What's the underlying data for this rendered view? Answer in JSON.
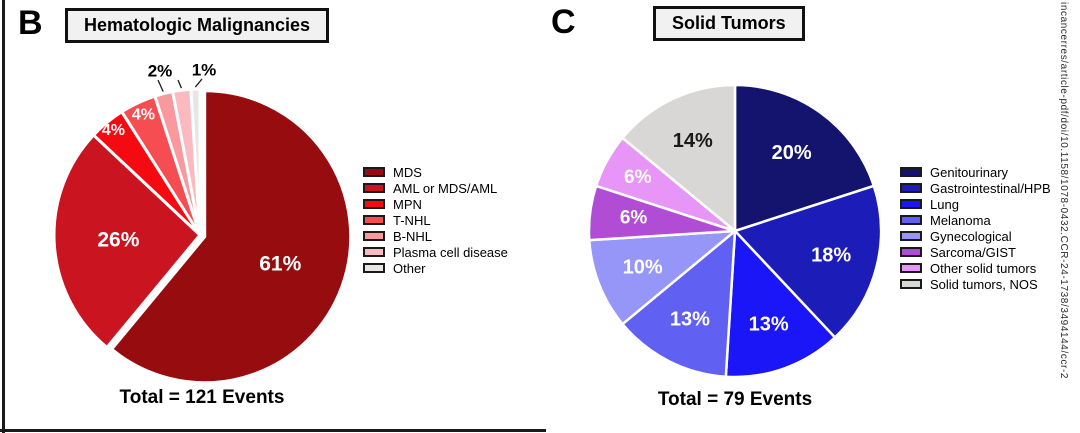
{
  "page": {
    "background": "#ffffff",
    "border_color": "#1a1a1a",
    "watermark_text": "incancerres/article-pdf/doi/10.1158/1078-0432.CCR-24-1738/3494144/ccr-2"
  },
  "chart_data": [
    {
      "type": "pie",
      "panel": "B",
      "title": "Hematologic Malignancies",
      "total": "Total = 121 Events",
      "start_angle_deg": 0,
      "direction": "clockwise",
      "legend_position": "right",
      "slices": [
        {
          "label": "MDS",
          "pct": 61,
          "display": "61%",
          "color": "#970D0F",
          "text_color": "#ffffff"
        },
        {
          "label": "AML or MDS/AML",
          "pct": 26,
          "display": "26%",
          "color": "#CA1521",
          "text_color": "#ffffff"
        },
        {
          "label": "MPN",
          "pct": 4,
          "display": "4%",
          "color": "#F40A10",
          "text_color": "#ffffff"
        },
        {
          "label": "T-NHL",
          "pct": 4,
          "display": "4%",
          "color": "#F64D52",
          "text_color": "#ffffff"
        },
        {
          "label": "B-NHL",
          "pct": 2,
          "display": "2%",
          "color": "#F9989D",
          "text_color": "#1a1a1a"
        },
        {
          "label": "Plasma cell disease",
          "pct": 2,
          "display": "",
          "color": "#FBBABF",
          "text_color": "#1a1a1a"
        },
        {
          "label": "Other",
          "pct": 1,
          "display": "1%",
          "color": "#E7E6E4",
          "text_color": "#1a1a1a"
        }
      ]
    },
    {
      "type": "pie",
      "panel": "C",
      "title": "Solid Tumors",
      "total": "Total = 79 Events",
      "start_angle_deg": 0,
      "direction": "clockwise",
      "legend_position": "right",
      "slices": [
        {
          "label": "Genitourinary",
          "pct": 20,
          "display": "20%",
          "color": "#14146F",
          "text_color": "#ffffff"
        },
        {
          "label": "Gastrointestinal/HPB",
          "pct": 18,
          "display": "18%",
          "color": "#1C1CB8",
          "text_color": "#ffffff"
        },
        {
          "label": "Lung",
          "pct": 13,
          "display": "13%",
          "color": "#1A16F8",
          "text_color": "#ffffff"
        },
        {
          "label": "Melanoma",
          "pct": 13,
          "display": "13%",
          "color": "#6060F3",
          "text_color": "#ffffff"
        },
        {
          "label": "Gynecological",
          "pct": 10,
          "display": "10%",
          "color": "#9696F9",
          "text_color": "#ffffff"
        },
        {
          "label": "Sarcoma/GIST",
          "pct": 6,
          "display": "6%",
          "color": "#B14DD5",
          "text_color": "#ffffff"
        },
        {
          "label": "Other solid tumors",
          "pct": 6,
          "display": "6%",
          "color": "#E795F7",
          "text_color": "#ffffff"
        },
        {
          "label": "Solid tumors, NOS",
          "pct": 14,
          "display": "14%",
          "color": "#D8D7D5",
          "text_color": "#1a1a1a"
        }
      ]
    }
  ]
}
